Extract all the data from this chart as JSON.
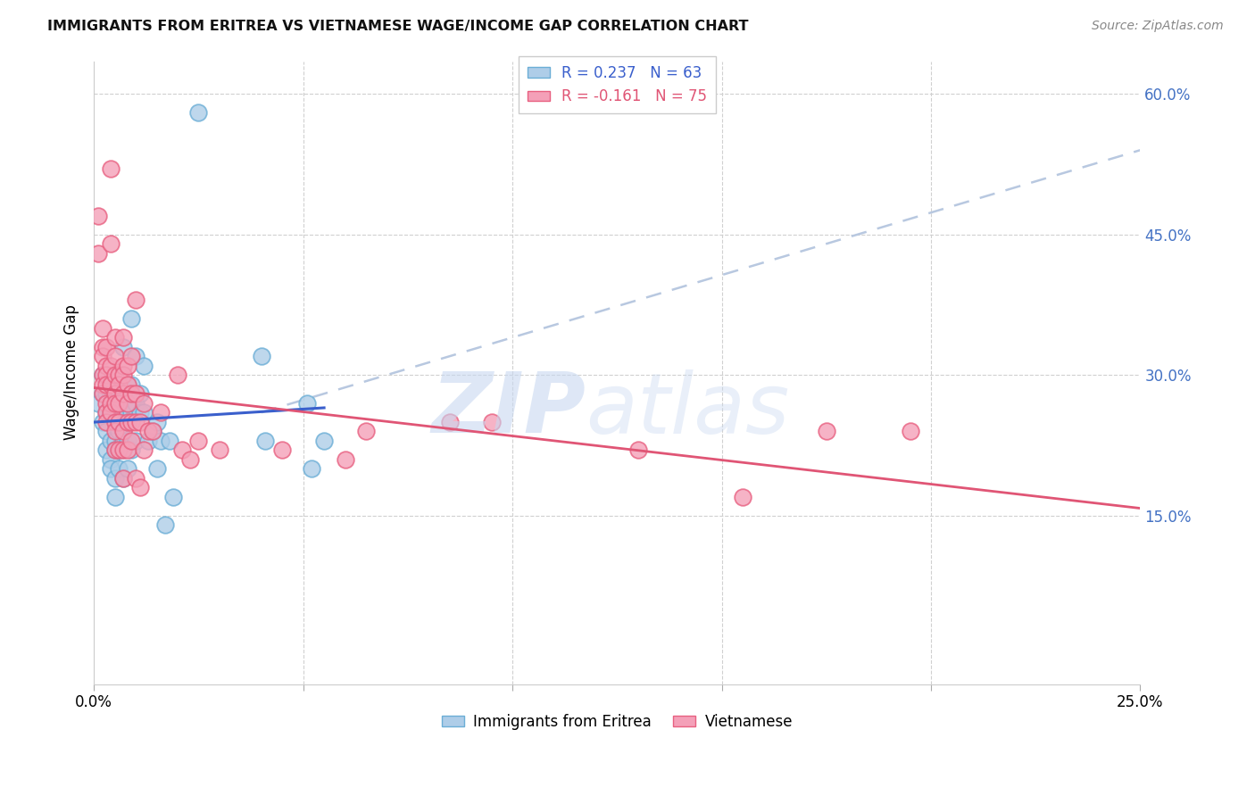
{
  "title": "IMMIGRANTS FROM ERITREA VS VIETNAMESE WAGE/INCOME GAP CORRELATION CHART",
  "source": "Source: ZipAtlas.com",
  "ylabel": "Wage/Income Gap",
  "yticks": [
    0.0,
    0.15,
    0.3,
    0.45,
    0.6
  ],
  "xticks": [
    0.0,
    0.05,
    0.1,
    0.15,
    0.2,
    0.25
  ],
  "xlim": [
    0.0,
    0.25
  ],
  "ylim": [
    -0.03,
    0.635
  ],
  "eritrea_color": "#aecde8",
  "eritrea_edge": "#6baed6",
  "vietnamese_color": "#f4a0b8",
  "vietnamese_edge": "#e86080",
  "trend_eritrea_color": "#3a5fcc",
  "trend_vietnamese_color": "#e05575",
  "trend_dashed_color": "#b8c8e0",
  "eritrea_points": [
    [
      0.001,
      0.27
    ],
    [
      0.002,
      0.28
    ],
    [
      0.002,
      0.3
    ],
    [
      0.002,
      0.25
    ],
    [
      0.003,
      0.26
    ],
    [
      0.003,
      0.28
    ],
    [
      0.003,
      0.24
    ],
    [
      0.003,
      0.22
    ],
    [
      0.004,
      0.26
    ],
    [
      0.004,
      0.28
    ],
    [
      0.004,
      0.23
    ],
    [
      0.004,
      0.21
    ],
    [
      0.004,
      0.2
    ],
    [
      0.005,
      0.28
    ],
    [
      0.005,
      0.27
    ],
    [
      0.005,
      0.25
    ],
    [
      0.005,
      0.23
    ],
    [
      0.005,
      0.22
    ],
    [
      0.005,
      0.19
    ],
    [
      0.005,
      0.17
    ],
    [
      0.006,
      0.28
    ],
    [
      0.006,
      0.27
    ],
    [
      0.006,
      0.26
    ],
    [
      0.006,
      0.24
    ],
    [
      0.006,
      0.22
    ],
    [
      0.006,
      0.2
    ],
    [
      0.007,
      0.33
    ],
    [
      0.007,
      0.27
    ],
    [
      0.007,
      0.26
    ],
    [
      0.007,
      0.24
    ],
    [
      0.007,
      0.23
    ],
    [
      0.007,
      0.22
    ],
    [
      0.007,
      0.19
    ],
    [
      0.008,
      0.29
    ],
    [
      0.008,
      0.27
    ],
    [
      0.008,
      0.25
    ],
    [
      0.008,
      0.23
    ],
    [
      0.008,
      0.2
    ],
    [
      0.009,
      0.36
    ],
    [
      0.009,
      0.29
    ],
    [
      0.009,
      0.26
    ],
    [
      0.009,
      0.22
    ],
    [
      0.01,
      0.32
    ],
    [
      0.01,
      0.27
    ],
    [
      0.01,
      0.23
    ],
    [
      0.011,
      0.28
    ],
    [
      0.011,
      0.26
    ],
    [
      0.012,
      0.31
    ],
    [
      0.012,
      0.26
    ],
    [
      0.013,
      0.23
    ],
    [
      0.014,
      0.24
    ],
    [
      0.015,
      0.25
    ],
    [
      0.015,
      0.2
    ],
    [
      0.016,
      0.23
    ],
    [
      0.017,
      0.14
    ],
    [
      0.018,
      0.23
    ],
    [
      0.019,
      0.17
    ],
    [
      0.025,
      0.58
    ],
    [
      0.04,
      0.32
    ],
    [
      0.041,
      0.23
    ],
    [
      0.051,
      0.27
    ],
    [
      0.052,
      0.2
    ],
    [
      0.055,
      0.23
    ]
  ],
  "vietnamese_points": [
    [
      0.001,
      0.47
    ],
    [
      0.001,
      0.43
    ],
    [
      0.002,
      0.35
    ],
    [
      0.002,
      0.33
    ],
    [
      0.002,
      0.32
    ],
    [
      0.002,
      0.3
    ],
    [
      0.002,
      0.29
    ],
    [
      0.002,
      0.28
    ],
    [
      0.003,
      0.33
    ],
    [
      0.003,
      0.31
    ],
    [
      0.003,
      0.3
    ],
    [
      0.003,
      0.29
    ],
    [
      0.003,
      0.27
    ],
    [
      0.003,
      0.26
    ],
    [
      0.003,
      0.25
    ],
    [
      0.004,
      0.52
    ],
    [
      0.004,
      0.44
    ],
    [
      0.004,
      0.31
    ],
    [
      0.004,
      0.29
    ],
    [
      0.004,
      0.27
    ],
    [
      0.004,
      0.26
    ],
    [
      0.005,
      0.34
    ],
    [
      0.005,
      0.32
    ],
    [
      0.005,
      0.3
    ],
    [
      0.005,
      0.28
    ],
    [
      0.005,
      0.27
    ],
    [
      0.005,
      0.25
    ],
    [
      0.005,
      0.24
    ],
    [
      0.005,
      0.22
    ],
    [
      0.006,
      0.3
    ],
    [
      0.006,
      0.29
    ],
    [
      0.006,
      0.27
    ],
    [
      0.006,
      0.25
    ],
    [
      0.006,
      0.22
    ],
    [
      0.007,
      0.34
    ],
    [
      0.007,
      0.31
    ],
    [
      0.007,
      0.3
    ],
    [
      0.007,
      0.28
    ],
    [
      0.007,
      0.24
    ],
    [
      0.007,
      0.22
    ],
    [
      0.007,
      0.19
    ],
    [
      0.008,
      0.31
    ],
    [
      0.008,
      0.29
    ],
    [
      0.008,
      0.27
    ],
    [
      0.008,
      0.25
    ],
    [
      0.008,
      0.22
    ],
    [
      0.009,
      0.32
    ],
    [
      0.009,
      0.28
    ],
    [
      0.009,
      0.25
    ],
    [
      0.009,
      0.23
    ],
    [
      0.01,
      0.38
    ],
    [
      0.01,
      0.28
    ],
    [
      0.01,
      0.25
    ],
    [
      0.01,
      0.19
    ],
    [
      0.011,
      0.25
    ],
    [
      0.011,
      0.18
    ],
    [
      0.012,
      0.27
    ],
    [
      0.012,
      0.22
    ],
    [
      0.013,
      0.24
    ],
    [
      0.014,
      0.24
    ],
    [
      0.016,
      0.26
    ],
    [
      0.02,
      0.3
    ],
    [
      0.021,
      0.22
    ],
    [
      0.023,
      0.21
    ],
    [
      0.025,
      0.23
    ],
    [
      0.03,
      0.22
    ],
    [
      0.045,
      0.22
    ],
    [
      0.06,
      0.21
    ],
    [
      0.065,
      0.24
    ],
    [
      0.085,
      0.25
    ],
    [
      0.095,
      0.25
    ],
    [
      0.13,
      0.22
    ],
    [
      0.155,
      0.17
    ],
    [
      0.175,
      0.24
    ],
    [
      0.195,
      0.24
    ]
  ],
  "legend_r1": "R = 0.237",
  "legend_n1": "N = 63",
  "legend_r2": "R = -0.161",
  "legend_n2": "N = 75",
  "legend_label1": "Immigrants from Eritrea",
  "legend_label2": "Vietnamese"
}
